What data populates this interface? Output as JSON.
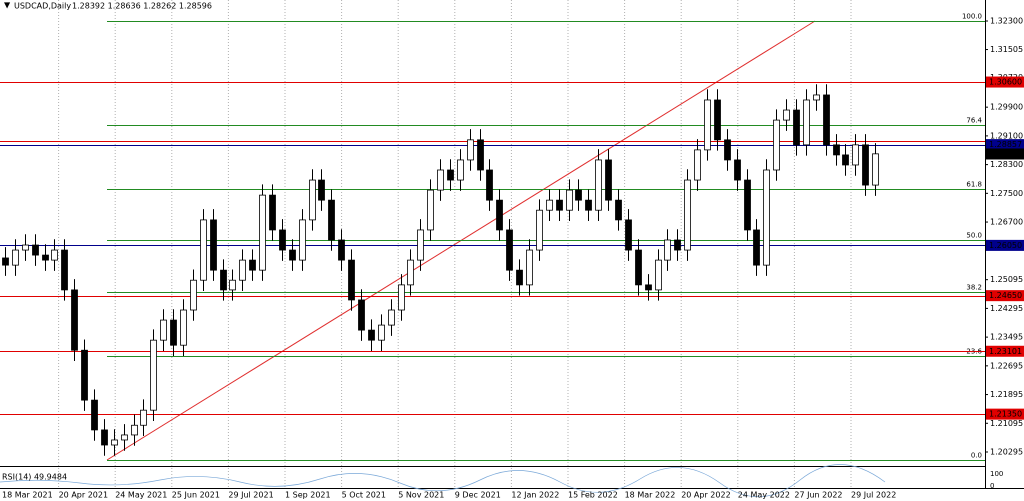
{
  "chart_data": {
    "type": "candlestick",
    "symbol": "USDCAD,Daily",
    "quote": "1.28392 1.28636 1.28262 1.28596",
    "open": [
      1.257,
      1.255,
      1.2592,
      1.2606,
      1.2578,
      1.2564,
      1.2592,
      1.2481,
      1.2313,
      1.2174,
      1.2091,
      1.2049,
      1.2063,
      1.2077,
      1.2104,
      1.2146,
      1.2341,
      1.2397,
      1.2327,
      1.2425,
      1.2508,
      1.2676,
      1.2536,
      1.2481,
      1.2508,
      1.2564,
      1.2536,
      1.2745,
      1.2648,
      1.2592,
      1.2564,
      1.2676,
      1.2787,
      1.2731,
      1.262,
      1.2564,
      1.2453,
      1.2369,
      1.2341,
      1.2383,
      1.2425,
      1.2495,
      1.2564,
      1.2648,
      1.2759,
      1.2815,
      1.2787,
      1.2843,
      1.2899,
      1.2815,
      1.2731,
      1.2648,
      1.2536,
      1.2495,
      1.2592,
      1.2703,
      1.2731,
      1.2703,
      1.2759,
      1.2731,
      1.2703,
      1.2843,
      1.2731,
      1.2676,
      1.2592,
      1.2495,
      1.2481,
      1.2564,
      1.262,
      1.2592,
      1.2787,
      1.2871,
      1.301,
      1.2899,
      1.2843,
      1.2787,
      1.2648,
      1.255,
      1.2815,
      1.2954,
      1.2982,
      1.2885,
      1.301,
      1.3024,
      1.2885,
      1.2857,
      1.2829,
      1.2885,
      1.2773
    ],
    "high": [
      1.26,
      1.2622,
      1.2636,
      1.2636,
      1.2608,
      1.2622,
      1.2622,
      1.2511,
      1.2343,
      1.2204,
      1.2121,
      1.2093,
      1.2107,
      1.2134,
      1.2176,
      1.2371,
      1.2427,
      1.2427,
      1.2455,
      1.2538,
      1.2706,
      1.2706,
      1.2566,
      1.2538,
      1.2594,
      1.2594,
      1.2775,
      1.2775,
      1.2678,
      1.2622,
      1.2706,
      1.2817,
      1.2817,
      1.2761,
      1.265,
      1.2594,
      1.2483,
      1.2399,
      1.2413,
      1.2455,
      1.2525,
      1.2594,
      1.2678,
      1.2789,
      1.2845,
      1.2845,
      1.2873,
      1.2929,
      1.2929,
      1.2845,
      1.2761,
      1.2678,
      1.2566,
      1.2622,
      1.2733,
      1.2761,
      1.2761,
      1.2789,
      1.2789,
      1.2761,
      1.2873,
      1.2873,
      1.2761,
      1.2706,
      1.2622,
      1.2525,
      1.2594,
      1.265,
      1.265,
      1.2817,
      1.2901,
      1.304,
      1.304,
      1.2929,
      1.2873,
      1.2817,
      1.2678,
      1.2845,
      1.2984,
      1.3012,
      1.3012,
      1.304,
      1.3054,
      1.3054,
      1.2915,
      1.2887,
      1.2915,
      1.2915,
      1.289
    ],
    "low": [
      1.252,
      1.252,
      1.2562,
      1.2548,
      1.2534,
      1.2534,
      1.2451,
      1.2283,
      1.2144,
      1.2061,
      1.2019,
      1.2019,
      1.2033,
      1.2047,
      1.2074,
      1.2116,
      1.2311,
      1.2297,
      1.2297,
      1.2395,
      1.2478,
      1.2506,
      1.2451,
      1.2451,
      1.2478,
      1.2506,
      1.2506,
      1.2618,
      1.2562,
      1.2534,
      1.2534,
      1.2646,
      1.2701,
      1.259,
      1.2534,
      1.2423,
      1.2339,
      1.2311,
      1.2311,
      1.2353,
      1.2395,
      1.2465,
      1.2534,
      1.2618,
      1.2729,
      1.2757,
      1.2757,
      1.2813,
      1.2785,
      1.2701,
      1.2618,
      1.2506,
      1.2465,
      1.2465,
      1.2562,
      1.2673,
      1.2673,
      1.2673,
      1.2701,
      1.2673,
      1.2673,
      1.2701,
      1.2646,
      1.2562,
      1.2465,
      1.2451,
      1.2451,
      1.2534,
      1.2562,
      1.2562,
      1.2757,
      1.2841,
      1.2869,
      1.2813,
      1.2757,
      1.2618,
      1.252,
      1.252,
      1.2785,
      1.2924,
      1.2855,
      1.2855,
      1.298,
      1.2855,
      1.2827,
      1.2799,
      1.2799,
      1.2743,
      1.2743
    ],
    "close": [
      1.255,
      1.2592,
      1.2606,
      1.2578,
      1.2564,
      1.2592,
      1.2481,
      1.2313,
      1.2174,
      1.2091,
      1.2049,
      1.2063,
      1.2077,
      1.2104,
      1.2146,
      1.2341,
      1.2397,
      1.2327,
      1.2425,
      1.2508,
      1.2676,
      1.2536,
      1.2481,
      1.2508,
      1.2564,
      1.2536,
      1.2745,
      1.2648,
      1.2592,
      1.2564,
      1.2676,
      1.2787,
      1.2731,
      1.262,
      1.2564,
      1.2453,
      1.2369,
      1.2341,
      1.2383,
      1.2425,
      1.2495,
      1.2564,
      1.2648,
      1.2759,
      1.2815,
      1.2787,
      1.2843,
      1.2899,
      1.2815,
      1.2731,
      1.2648,
      1.2536,
      1.2495,
      1.2592,
      1.2703,
      1.2731,
      1.2703,
      1.2759,
      1.2731,
      1.2703,
      1.2843,
      1.2731,
      1.2676,
      1.2592,
      1.2495,
      1.2481,
      1.2564,
      1.262,
      1.2592,
      1.2787,
      1.2871,
      1.301,
      1.2899,
      1.2843,
      1.2787,
      1.2648,
      1.255,
      1.2815,
      1.2954,
      1.2982,
      1.2885,
      1.301,
      1.3024,
      1.2885,
      1.2857,
      1.2829,
      1.2885,
      1.2773,
      1.286
    ],
    "xtick_labels": [
      "18 Mar 2021",
      "20 Apr 2021",
      "24 May 2021",
      "25 Jun 2021",
      "29 Jul 2021",
      "1 Sep 2021",
      "5 Oct 2021",
      "5 Nov 2021",
      "9 Dec 2021",
      "12 Jan 2022",
      "15 Feb 2022",
      "18 Mar 2022",
      "20 Apr 2022",
      "24 May 2022",
      "27 Jun 2022",
      "29 Jul 2022"
    ],
    "ylim": [
      1.19933,
      1.32885
    ],
    "yticks": [
      {
        "value": 1.323,
        "label": "1.32300"
      },
      1.31505,
      {
        "value": 1.3072,
        "label": "1.30720"
      },
      {
        "value": 1.299,
        "label": "1.29900"
      },
      {
        "value": 1.291,
        "label": "1.29100"
      },
      {
        "value": 1.283,
        "label": "1.28300"
      },
      {
        "value": 1.275,
        "label": "1.27500"
      },
      {
        "value": 1.267,
        "label": "1.26700"
      },
      1.25095,
      1.24295,
      1.23495,
      1.22695,
      1.21895,
      1.21095,
      1.20295
    ],
    "levels": [
      {
        "value": 1.306,
        "label": "1.30600",
        "color": "#e00000"
      },
      {
        "value": 1.2895,
        "color": "#e00000"
      },
      {
        "value": 1.28857,
        "label": "1.28857",
        "color": "#00008b"
      },
      {
        "value": 1.2605,
        "label": "1.26050",
        "color": "#00008b"
      },
      {
        "value": 1.2465,
        "label": "1.24650",
        "color": "#e00000"
      },
      {
        "value": 1.23101,
        "label": "1.23101",
        "color": "#e00000"
      },
      {
        "value": 1.2135,
        "label": "1.21350",
        "color": "#e00000"
      }
    ],
    "last_price": {
      "value": 1.28596,
      "label": "1.28596"
    },
    "fibo": {
      "color": "#228b22",
      "levels": [
        {
          "value": 1.323,
          "label": "100.0"
        },
        {
          "value": 1.29403,
          "label": "76.4"
        },
        {
          "value": 1.2762,
          "label": "61.8"
        },
        {
          "value": 1.26199,
          "label": "50.0"
        },
        {
          "value": 1.2475,
          "label": "38.2"
        },
        {
          "value": 1.22967,
          "label": "23.6"
        },
        {
          "value": 1.20069,
          "label": "0.0"
        }
      ]
    },
    "rsi": {
      "label": "RSI(14) 49.9484",
      "yticks": [
        100,
        0
      ]
    }
  }
}
